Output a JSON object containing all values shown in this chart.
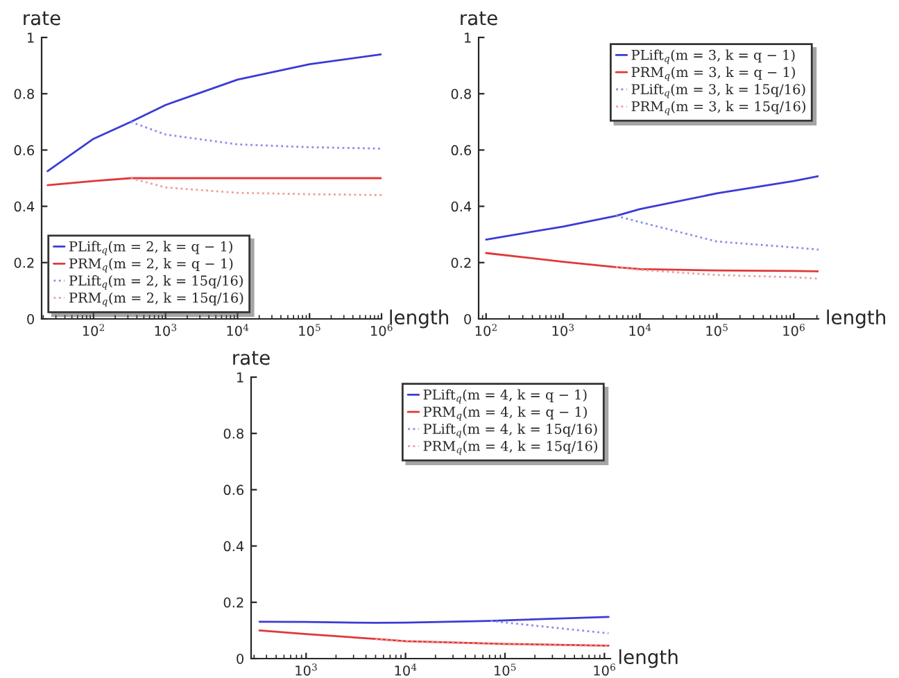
{
  "chart_data": [
    {
      "type": "line",
      "xlabel": "length",
      "ylabel": "rate",
      "log": "x",
      "xlim": [
        19,
        1000000
      ],
      "ylim": [
        0,
        1
      ],
      "xticks": [
        {
          "value": 100,
          "label": "10$^{2}$"
        },
        {
          "value": 1000,
          "label": "10$^{3}$"
        },
        {
          "value": 10000,
          "label": "10$^{4}$"
        },
        {
          "value": 100000,
          "label": "10$^{5}$"
        },
        {
          "value": 1000000,
          "label": "10$^{6}$"
        }
      ],
      "yticks": [
        0,
        0.2,
        0.4,
        0.6,
        0.8,
        1
      ],
      "grid": false,
      "legend": "bottom left",
      "series": [
        {
          "name": "PLift$_{q}$(m = 2, k = q − 1)",
          "color": "#3b3bd6",
          "line_style": "solid",
          "x": [
            23,
            100,
            330,
            1000,
            10000,
            100000,
            1000000
          ],
          "values": [
            0.525,
            0.64,
            0.7,
            0.76,
            0.85,
            0.905,
            0.94
          ]
        },
        {
          "name": "PRM$_{q}$(m = 2, k = q − 1)",
          "color": "#e03838",
          "line_style": "solid",
          "x": [
            23,
            100,
            330,
            1000,
            10000,
            100000,
            1000000
          ],
          "values": [
            0.475,
            0.49,
            0.5,
            0.5,
            0.5,
            0.5,
            0.5
          ]
        },
        {
          "name": "PLift$_{q}$(m = 2, k = 15q/16)",
          "color": "#8a8ae8",
          "line_style": "dotted",
          "x": [
            330,
            1000,
            10000,
            100000,
            1000000
          ],
          "values": [
            0.7,
            0.655,
            0.62,
            0.61,
            0.605
          ]
        },
        {
          "name": "PRM$_{q}$(m = 2, k = 15q/16)",
          "color": "#f09a9a",
          "line_style": "dotted",
          "x": [
            330,
            1000,
            10000,
            100000,
            1000000
          ],
          "values": [
            0.5,
            0.467,
            0.448,
            0.443,
            0.44
          ]
        }
      ]
    },
    {
      "type": "line",
      "xlabel": "length",
      "ylabel": "rate",
      "log": "x",
      "xlim": [
        80,
        2100000
      ],
      "ylim": [
        0,
        1
      ],
      "xticks": [
        {
          "value": 100,
          "label": "10$^{2}$"
        },
        {
          "value": 1000,
          "label": "10$^{3}$"
        },
        {
          "value": 10000,
          "label": "10$^{4}$"
        },
        {
          "value": 100000,
          "label": "10$^{5}$"
        },
        {
          "value": 1000000,
          "label": "10$^{6}$"
        }
      ],
      "yticks": [
        0,
        0.2,
        0.4,
        0.6,
        0.8,
        1
      ],
      "grid": false,
      "legend": "top right",
      "series": [
        {
          "name": "PLift$_{q}$(m = 3, k = q − 1)",
          "color": "#3b3bd6",
          "line_style": "solid",
          "x": [
            100,
            1000,
            4900,
            10000,
            100000,
            1000000,
            2100000
          ],
          "values": [
            0.282,
            0.328,
            0.366,
            0.39,
            0.446,
            0.49,
            0.507
          ]
        },
        {
          "name": "PRM$_{q}$(m = 3, k = q − 1)",
          "color": "#e03838",
          "line_style": "solid",
          "x": [
            100,
            1000,
            4900,
            10000,
            100000,
            1000000,
            2100000
          ],
          "values": [
            0.234,
            0.203,
            0.184,
            0.177,
            0.172,
            0.17,
            0.169
          ]
        },
        {
          "name": "PLift$_{q}$(m = 3, k = 15q/16)",
          "color": "#8a8ae8",
          "line_style": "dotted",
          "x": [
            4900,
            10000,
            100000,
            1000000,
            2100000
          ],
          "values": [
            0.366,
            0.344,
            0.275,
            0.254,
            0.246
          ]
        },
        {
          "name": "PRM$_{q}$(m = 3, k = 15q/16)",
          "color": "#f09a9a",
          "line_style": "dotted",
          "x": [
            4900,
            10000,
            100000,
            1000000,
            2100000
          ],
          "values": [
            0.184,
            0.174,
            0.156,
            0.148,
            0.143
          ]
        }
      ]
    },
    {
      "type": "line",
      "xlabel": "length",
      "ylabel": "rate",
      "log": "x",
      "xlim": [
        280,
        1150000
      ],
      "ylim": [
        0,
        1
      ],
      "xticks": [
        {
          "value": 1000,
          "label": "10$^{3}$"
        },
        {
          "value": 10000,
          "label": "10$^{4}$"
        },
        {
          "value": 100000,
          "label": "10$^{5}$"
        },
        {
          "value": 1000000,
          "label": "10$^{6}$"
        }
      ],
      "yticks": [
        0,
        0.2,
        0.4,
        0.6,
        0.8,
        1
      ],
      "grid": false,
      "legend": "top right",
      "series": [
        {
          "name": "PLift$_{q}$(m = 4, k = q − 1)",
          "color": "#3b3bd6",
          "line_style": "solid",
          "x": [
            340,
            1000,
            5000,
            10000,
            72000,
            100000,
            1100000
          ],
          "values": [
            0.131,
            0.13,
            0.127,
            0.128,
            0.134,
            0.136,
            0.148
          ]
        },
        {
          "name": "PRM$_{q}$(m = 4, k = q − 1)",
          "color": "#e03838",
          "line_style": "solid",
          "x": [
            340,
            1000,
            5000,
            10000,
            100000,
            1100000
          ],
          "values": [
            0.1,
            0.087,
            0.07,
            0.062,
            0.052,
            0.046
          ]
        },
        {
          "name": "PLift$_{q}$(m = 4, k = 15q/16)",
          "color": "#8a8ae8",
          "line_style": "dotted",
          "x": [
            72000,
            100000,
            1100000
          ],
          "values": [
            0.134,
            0.128,
            0.09
          ]
        },
        {
          "name": "PRM$_{q}$(m = 4, k = 15q/16)",
          "color": "#f09a9a",
          "line_style": "dotted",
          "x": [
            5000,
            10000,
            100000,
            1100000
          ],
          "values": [
            0.069,
            0.061,
            0.051,
            0.045
          ]
        }
      ]
    }
  ]
}
